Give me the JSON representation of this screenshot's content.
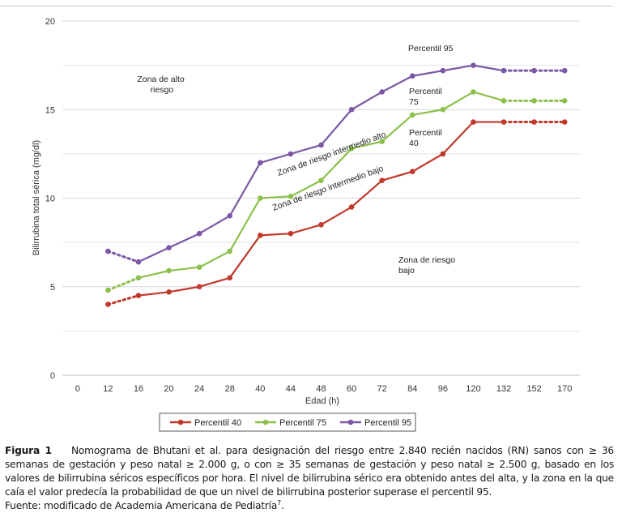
{
  "chart_data": {
    "type": "line",
    "xlabel": "Edad (h)",
    "ylabel": "Bilirrubina total sérica (mg/dl)",
    "categories": [
      "0",
      "12",
      "16",
      "20",
      "24",
      "28",
      "40",
      "44",
      "48",
      "60",
      "72",
      "84",
      "96",
      "120",
      "132",
      "152",
      "170"
    ],
    "ylim": [
      0,
      20
    ],
    "yticks": [
      0,
      5,
      10,
      15,
      20
    ],
    "grid": true,
    "legend_position": "bottom",
    "series": [
      {
        "name": "Percentil 40",
        "color": "#c0392b",
        "values": [
          null,
          4.0,
          4.5,
          4.7,
          5.0,
          5.5,
          7.9,
          8.0,
          8.5,
          9.5,
          11.0,
          11.5,
          12.5,
          14.3,
          14.3,
          14.3,
          14.3
        ],
        "dotted_segments": [
          [
            1,
            2
          ],
          [
            14,
            15
          ],
          [
            15,
            16
          ]
        ]
      },
      {
        "name": "Percentil 75",
        "color": "#8cc04b",
        "values": [
          null,
          4.8,
          5.5,
          5.9,
          6.1,
          7.0,
          10.0,
          10.1,
          11.0,
          12.8,
          13.2,
          14.7,
          15.0,
          16.0,
          15.5,
          15.5,
          15.5
        ],
        "dotted_segments": [
          [
            1,
            2
          ],
          [
            14,
            15
          ],
          [
            15,
            16
          ]
        ]
      },
      {
        "name": "Percentil 95",
        "color": "#7b57a6",
        "values": [
          null,
          7.0,
          6.4,
          7.2,
          8.0,
          9.0,
          12.0,
          12.5,
          13.0,
          15.0,
          16.0,
          16.9,
          17.2,
          17.5,
          17.2,
          17.2,
          17.2
        ],
        "dotted_segments": [
          [
            1,
            2
          ],
          [
            14,
            15
          ],
          [
            15,
            16
          ]
        ]
      }
    ],
    "annotations": [
      {
        "text": "Percentil 95"
      },
      {
        "line1": "Zona de alto",
        "line2": "riesgo"
      },
      {
        "line1": "Percentil",
        "line2": "75"
      },
      {
        "line1": "Percentil",
        "line2": "40"
      },
      {
        "text": "Zona de riesgo intermedio alto"
      },
      {
        "text": "Zona de riesgo intermedio bajo"
      },
      {
        "line1": "Zona de riesgo",
        "line2": "bajo"
      }
    ]
  },
  "caption": {
    "label": "Figura 1",
    "text": "Nomograma de Bhutani et al. para designación del riesgo entre 2.840 recién nacidos (RN) sanos con ≥ 36 semanas de gestación y peso natal ≥ 2.000 g, o con ≥ 35 semanas de gestación y peso natal ≥ 2.500 g, basado en los valores de bilirrubina séricos específicos por hora. El nivel de bilirrubina sérico era obtenido antes del alta, y la zona en la que caía el valor predecía la probabilidad de que un nivel de bilirrubina posterior superase el percentil 95.",
    "source": "Fuente: modificado de Academia Americana de Pediatría",
    "source_ref": "7",
    "source_end": "."
  }
}
